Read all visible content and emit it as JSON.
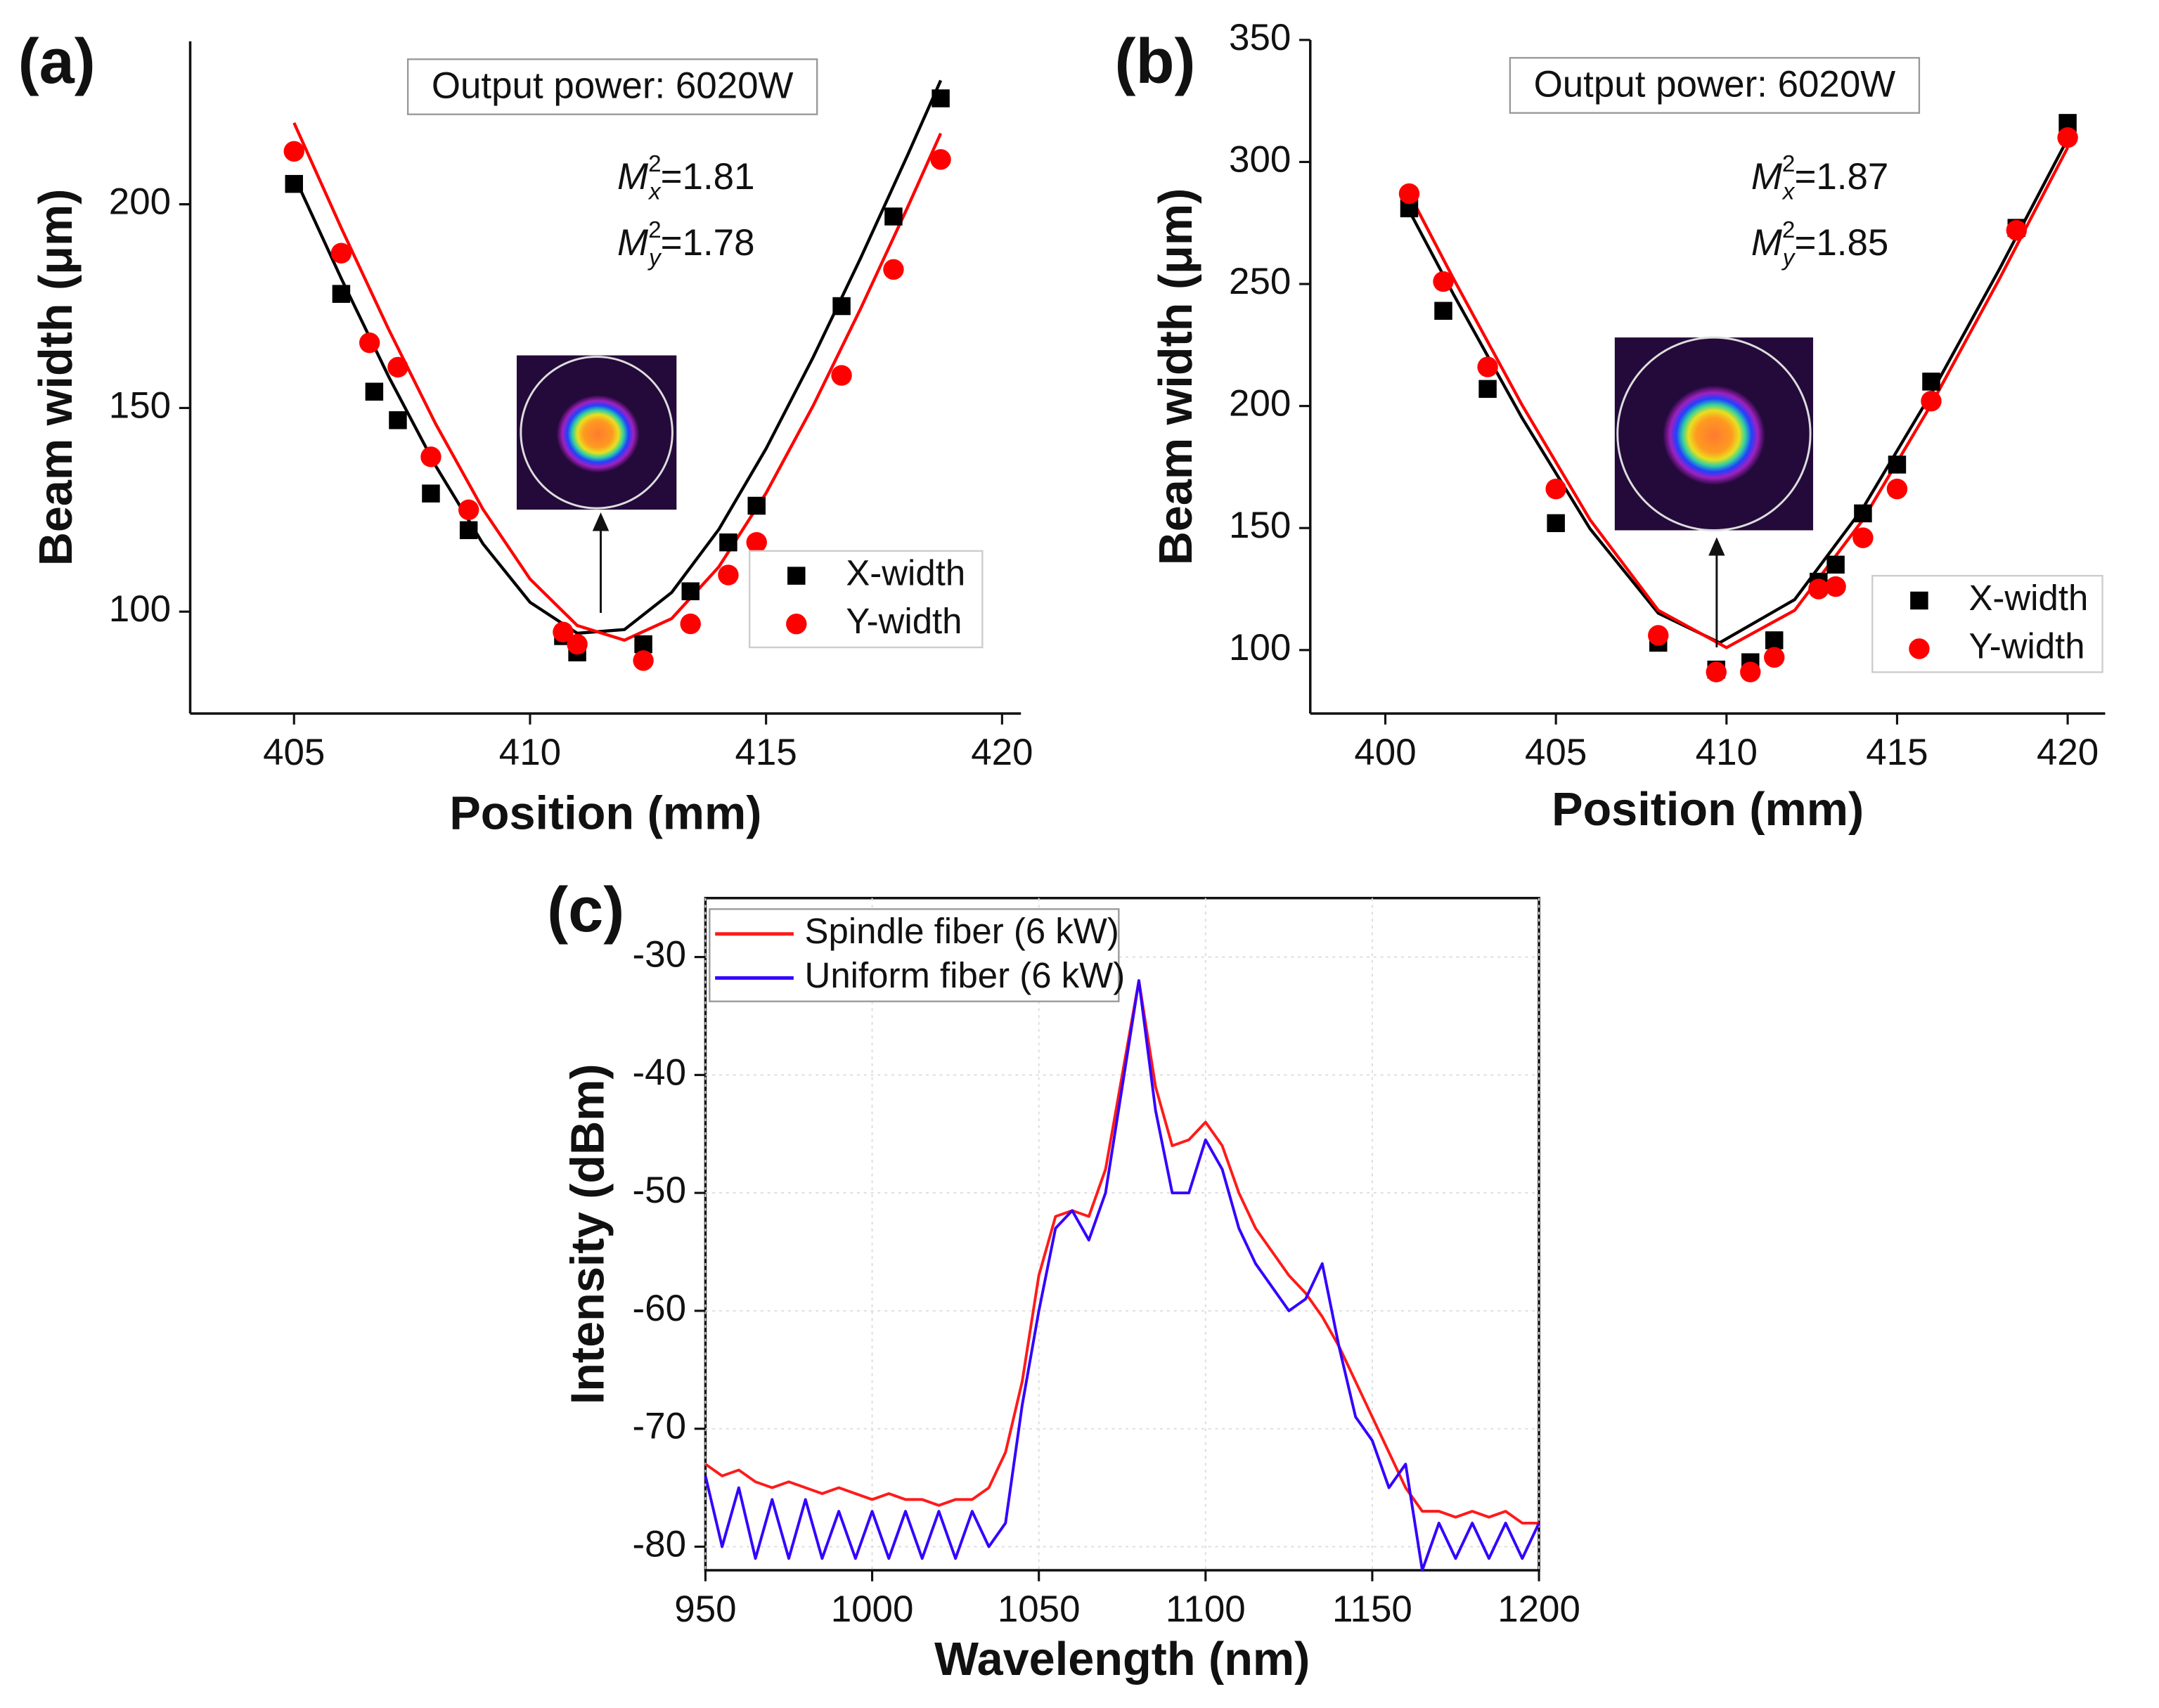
{
  "chart_data": [
    {
      "type": "scatter",
      "panel_label": "(a)",
      "xlabel": "Position (mm)",
      "ylabel": "Beam width (μm)",
      "xlim": [
        402.8,
        420.4
      ],
      "ylim": [
        75,
        240
      ],
      "xticks": [
        405,
        410,
        415,
        420
      ],
      "yticks": [
        100,
        150,
        200
      ],
      "annotation": "Output power: 6020W",
      "m_symbol": "M",
      "m_sup": "2",
      "m_values": [
        {
          "sub": "x",
          "label": "=1.81"
        },
        {
          "sub": "y",
          "label": "=1.78"
        }
      ],
      "legend": "lower right",
      "series": [
        {
          "name": "X-width",
          "color": "#000000",
          "marker": "square",
          "x": [
            405,
            406,
            406.7,
            407.2,
            407.9,
            408.7,
            410.7,
            411,
            412.4,
            413.4,
            414.2,
            414.8,
            416.6,
            417.7,
            418.7
          ],
          "values": [
            205,
            178,
            154,
            147,
            129,
            120,
            94,
            90,
            92,
            105,
            117,
            126,
            175,
            197,
            226
          ]
        },
        {
          "name": "Y-width",
          "color": "#ff0000",
          "marker": "circle",
          "x": [
            405,
            406,
            406.6,
            407.2,
            407.9,
            408.7,
            410.7,
            411,
            412.4,
            413.4,
            414.2,
            414.8,
            416.6,
            417.7,
            418.7
          ],
          "values": [
            213,
            188,
            166,
            160,
            138,
            125,
            95,
            92,
            88,
            97,
            109,
            117,
            158,
            184,
            211
          ]
        }
      ],
      "fits": [
        {
          "color": "#000000",
          "x": [
            405,
            406,
            407,
            408,
            409,
            410,
            411,
            412,
            413,
            414,
            415,
            416,
            417,
            418,
            418.7
          ],
          "values": [
            207,
            181.8,
            157.8,
            135.8,
            116.7,
            102.3,
            94.7,
            95.6,
            104.7,
            120.2,
            140,
            162.5,
            186.7,
            212.1,
            230.4
          ]
        },
        {
          "color": "#ff0000",
          "x": [
            405,
            406,
            407,
            408,
            409,
            410,
            411,
            412,
            413,
            414,
            415,
            416,
            417,
            418,
            418.7
          ],
          "values": [
            220,
            194.2,
            169.4,
            146.1,
            125.2,
            108,
            96.6,
            93,
            98.3,
            111,
            129.1,
            150.6,
            174.3,
            199.3,
            217.4
          ]
        }
      ]
    },
    {
      "type": "scatter",
      "panel_label": "(b)",
      "xlabel": "Position (mm)",
      "ylabel": "Beam width (μm)",
      "xlim": [
        397.8,
        421.1
      ],
      "ylim": [
        74,
        350
      ],
      "xticks": [
        400,
        405,
        410,
        415,
        420
      ],
      "yticks": [
        100,
        150,
        200,
        250,
        300,
        350
      ],
      "annotation": "Output power: 6020W",
      "m_symbol": "M",
      "m_sup": "2",
      "m_values": [
        {
          "sub": "x",
          "label": "=1.87"
        },
        {
          "sub": "y",
          "label": "=1.85"
        }
      ],
      "legend": "lower right",
      "series": [
        {
          "name": "X-width",
          "color": "#000000",
          "marker": "square",
          "x": [
            400.7,
            401.7,
            403,
            405,
            408,
            409.7,
            410.7,
            411.4,
            412.7,
            413.2,
            414,
            415,
            416,
            418.5,
            420
          ],
          "values": [
            281,
            239,
            207,
            152,
            103,
            92,
            95,
            104,
            128,
            135,
            156,
            176,
            210,
            273,
            316
          ]
        },
        {
          "name": "Y-width",
          "color": "#ff0000",
          "marker": "circle",
          "x": [
            400.7,
            401.7,
            403,
            405,
            408,
            409.7,
            410.7,
            411.4,
            412.7,
            413.2,
            414,
            415,
            416,
            418.5,
            420
          ],
          "values": [
            287,
            251,
            216,
            166,
            106,
            91,
            91,
            97,
            125,
            126,
            146,
            166,
            202,
            272,
            310
          ]
        }
      ],
      "fits": [
        {
          "color": "#000000",
          "x": [
            400.7,
            402,
            404,
            406,
            408,
            409.8,
            412,
            414,
            416,
            418,
            420
          ],
          "values": [
            280,
            245.7,
            195.3,
            149.7,
            115.1,
            103,
            120.7,
            158.2,
            205.1,
            256.1,
            309.5
          ]
        },
        {
          "color": "#ff0000",
          "x": [
            400.7,
            402,
            404,
            406,
            408,
            410,
            412,
            414,
            416,
            418,
            420
          ],
          "values": [
            287,
            252.1,
            200.6,
            153.4,
            116.3,
            101,
            116.3,
            153.4,
            200.6,
            252.1,
            305.9
          ]
        }
      ]
    },
    {
      "type": "line",
      "panel_label": "(c)",
      "xlabel": "Wavelength (nm)",
      "ylabel": "Intensity (dBm)",
      "xlim": [
        950,
        1200
      ],
      "ylim": [
        -82,
        -25
      ],
      "xticks": [
        950,
        1000,
        1050,
        1100,
        1150,
        1200
      ],
      "yticks": [
        -80,
        -70,
        -60,
        -50,
        -40,
        -30
      ],
      "grid": true,
      "box": true,
      "legend": "upper left",
      "x": [
        950,
        955,
        960,
        965,
        970,
        975,
        980,
        985,
        990,
        995,
        1000,
        1005,
        1010,
        1015,
        1020,
        1025,
        1030,
        1035,
        1040,
        1045,
        1050,
        1055,
        1060,
        1065,
        1070,
        1075,
        1080,
        1085,
        1090,
        1095,
        1100,
        1105,
        1110,
        1115,
        1120,
        1125,
        1130,
        1135,
        1140,
        1145,
        1150,
        1155,
        1160,
        1165,
        1170,
        1175,
        1180,
        1185,
        1190,
        1195,
        1200
      ],
      "series": [
        {
          "name": "Spindle fiber (6 kW)",
          "color": "#ff1a1a",
          "values": [
            -73,
            -74,
            -73.5,
            -74.5,
            -75,
            -74.5,
            -75,
            -75.5,
            -75,
            -75.5,
            -76,
            -75.5,
            -76,
            -76,
            -76.5,
            -76,
            -76,
            -75,
            -72,
            -66,
            -57,
            -52,
            -51.5,
            -52,
            -48,
            -40,
            -32,
            -41,
            -46,
            -45.5,
            -44,
            -46,
            -50,
            -53,
            -55,
            -57,
            -58.5,
            -60.5,
            -63,
            -66,
            -69,
            -72,
            -75,
            -77,
            -77,
            -77.5,
            -77,
            -77.5,
            -77,
            -78,
            -78
          ]
        },
        {
          "name": "Uniform fiber (6 kW)",
          "color": "#3300ff",
          "values": [
            -74,
            -80,
            -75,
            -81,
            -76,
            -81,
            -76,
            -81,
            -77,
            -81,
            -77,
            -81,
            -77,
            -81,
            -77,
            -81,
            -77,
            -80,
            -78,
            -68,
            -60,
            -53,
            -51.5,
            -54,
            -50,
            -41,
            -32,
            -43,
            -50,
            -50,
            -45.5,
            -48,
            -53,
            -56,
            -58,
            -60,
            -59,
            -56,
            -63,
            -69,
            -71,
            -75,
            -73,
            -82,
            -78,
            -81,
            -78,
            -81,
            -78,
            -81,
            -78
          ]
        }
      ]
    }
  ]
}
